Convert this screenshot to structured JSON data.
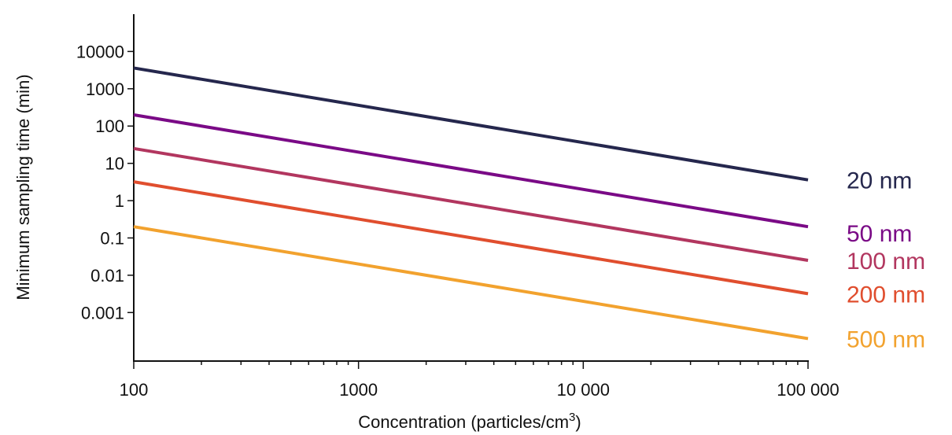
{
  "chart_data": {
    "type": "line",
    "xlabel": "Concentration (particles/cm",
    "xlabel_sup": "3",
    "xlabel_close": ")",
    "ylabel": "Minimum sampling time (min)",
    "xscale": "log",
    "yscale": "log",
    "xlim": [
      100,
      100000
    ],
    "ylim": [
      5e-05,
      100000
    ],
    "grid": false,
    "legend": "inline labels at right end of each line",
    "x_ticks": [
      {
        "value": 100,
        "label": "100"
      },
      {
        "value": 1000,
        "label": "1000"
      },
      {
        "value": 10000,
        "label": "10 000"
      },
      {
        "value": 100000,
        "label": "100 000"
      }
    ],
    "y_ticks": [
      {
        "value": 10000,
        "label": "10000"
      },
      {
        "value": 1000,
        "label": "1000"
      },
      {
        "value": 100,
        "label": "100"
      },
      {
        "value": 10,
        "label": "10"
      },
      {
        "value": 1,
        "label": "1"
      },
      {
        "value": 0.1,
        "label": "0.1"
      },
      {
        "value": 0.01,
        "label": "0.01"
      },
      {
        "value": 0.001,
        "label": "0.001"
      }
    ],
    "series": [
      {
        "name": "20 nm",
        "color": "#25274d",
        "x": [
          100,
          100000
        ],
        "y": [
          3600,
          3.6
        ]
      },
      {
        "name": "50 nm",
        "color": "#7a0a86",
        "x": [
          100,
          100000
        ],
        "y": [
          200,
          0.2
        ]
      },
      {
        "name": "100 nm",
        "color": "#b2365f",
        "x": [
          100,
          100000
        ],
        "y": [
          25,
          0.025
        ]
      },
      {
        "name": "200 nm",
        "color": "#e04e2e",
        "x": [
          100,
          100000
        ],
        "y": [
          3.2,
          0.0032
        ]
      },
      {
        "name": "500 nm",
        "color": "#f2a22e",
        "x": [
          100,
          100000
        ],
        "y": [
          0.2,
          0.0002
        ]
      }
    ]
  }
}
